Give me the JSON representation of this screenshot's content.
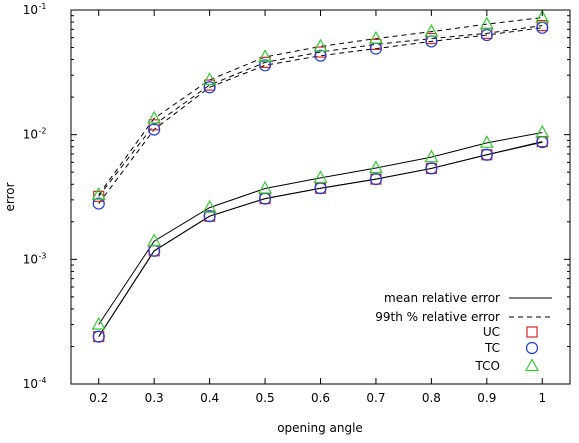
{
  "chart_data": {
    "type": "line",
    "xlabel": "opening angle",
    "ylabel": "error",
    "y_scale": "log",
    "xlim": [
      0.15,
      1.05
    ],
    "ylim": [
      0.0001,
      0.1
    ],
    "grid": false,
    "legend_position": "bottom-right",
    "x_ticks": [
      {
        "value": 0.2,
        "label": "0.2"
      },
      {
        "value": 0.3,
        "label": "0.3"
      },
      {
        "value": 0.4,
        "label": "0.4"
      },
      {
        "value": 0.5,
        "label": "0.5"
      },
      {
        "value": 0.6,
        "label": "0.6"
      },
      {
        "value": 0.7,
        "label": "0.7"
      },
      {
        "value": 0.8,
        "label": "0.8"
      },
      {
        "value": 0.9,
        "label": "0.9"
      },
      {
        "value": 1.0,
        "label": "1"
      }
    ],
    "y_ticks": [
      {
        "value": 0.0001,
        "base": "10",
        "exp": "-4"
      },
      {
        "value": 0.001,
        "base": "10",
        "exp": "-3"
      },
      {
        "value": 0.01,
        "base": "10",
        "exp": "-2"
      },
      {
        "value": 0.1,
        "base": "10",
        "exp": "-1"
      }
    ],
    "x": [
      0.2,
      0.3,
      0.4,
      0.5,
      0.6,
      0.7,
      0.8,
      0.9,
      1.0
    ],
    "legend": [
      {
        "label": "mean relative error",
        "kind": "line-solid"
      },
      {
        "label": "99th % relative error",
        "kind": "line-dashed"
      },
      {
        "label": "UC",
        "kind": "marker",
        "marker": "square",
        "color": "#d62728"
      },
      {
        "label": "TC",
        "kind": "marker",
        "marker": "circle",
        "color": "#1f3fe0"
      },
      {
        "label": "TCO",
        "kind": "marker",
        "marker": "triangle",
        "color": "#33cc33"
      }
    ],
    "series": [
      {
        "name": "UC",
        "metric": "mean relative error",
        "style": "solid",
        "marker": "square",
        "color": "#d62728",
        "values": [
          0.00024,
          0.00117,
          0.00222,
          0.00307,
          0.00372,
          0.0044,
          0.00536,
          0.0069,
          0.0088
        ]
      },
      {
        "name": "TC",
        "metric": "mean relative error",
        "style": "solid",
        "marker": "circle",
        "color": "#1f3fe0",
        "values": [
          0.00024,
          0.00117,
          0.00222,
          0.00307,
          0.00372,
          0.0044,
          0.00536,
          0.0069,
          0.0087
        ]
      },
      {
        "name": "TCO",
        "metric": "mean relative error",
        "style": "solid",
        "marker": "triangle",
        "color": "#33cc33",
        "values": [
          0.0003,
          0.0014,
          0.0026,
          0.0037,
          0.0045,
          0.0054,
          0.0066,
          0.0086,
          0.0104
        ]
      },
      {
        "name": "UC",
        "metric": "99th % relative error",
        "style": "dashed",
        "marker": "square",
        "color": "#d62728",
        "values": [
          0.0032,
          0.012,
          0.025,
          0.038,
          0.046,
          0.053,
          0.059,
          0.065,
          0.075
        ]
      },
      {
        "name": "TC",
        "metric": "99th % relative error",
        "style": "dashed",
        "marker": "circle",
        "color": "#1f3fe0",
        "values": [
          0.0028,
          0.011,
          0.024,
          0.036,
          0.043,
          0.049,
          0.056,
          0.063,
          0.072
        ]
      },
      {
        "name": "TCO",
        "metric": "99th % relative error",
        "style": "dashed",
        "marker": "triangle",
        "color": "#33cc33",
        "values": [
          0.0033,
          0.0135,
          0.0275,
          0.042,
          0.051,
          0.059,
          0.067,
          0.077,
          0.087
        ]
      }
    ]
  }
}
